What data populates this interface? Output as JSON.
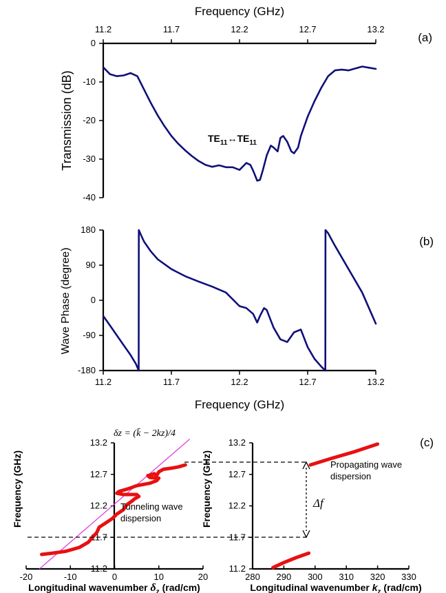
{
  "chart_data": [
    {
      "panel_label": "(a)",
      "type": "line",
      "xlabel": "Frequency (GHz)",
      "ylabel": "Transmission (dB)",
      "x_ticks": [
        "11.2",
        "11.7",
        "12.2",
        "12.7",
        "13.2"
      ],
      "y_ticks": [
        "0",
        "-10",
        "-20",
        "-30",
        "-40"
      ],
      "xlim": [
        11.2,
        13.2
      ],
      "ylim": [
        -40,
        0
      ],
      "annotation": {
        "main": "TE",
        "sub1": "11",
        "arrow": "↔",
        "main2": "TE",
        "sub2": "11"
      },
      "x": [
        11.2,
        11.25,
        11.3,
        11.35,
        11.4,
        11.45,
        11.5,
        11.55,
        11.6,
        11.65,
        11.7,
        11.75,
        11.8,
        11.85,
        11.9,
        11.95,
        12.0,
        12.05,
        12.1,
        12.15,
        12.2,
        12.25,
        12.28,
        12.3,
        12.33,
        12.35,
        12.37,
        12.4,
        12.43,
        12.45,
        12.48,
        12.5,
        12.52,
        12.55,
        12.58,
        12.6,
        12.63,
        12.65,
        12.7,
        12.75,
        12.8,
        12.85,
        12.9,
        12.95,
        13.0,
        13.05,
        13.1,
        13.15,
        13.2
      ],
      "y": [
        -6.2,
        -8.0,
        -8.5,
        -8.3,
        -7.7,
        -8.5,
        -12.0,
        -15.5,
        -18.7,
        -21.5,
        -24.0,
        -26.0,
        -27.7,
        -29.2,
        -30.5,
        -31.5,
        -32.0,
        -31.6,
        -32.1,
        -32.1,
        -32.8,
        -31.0,
        -31.5,
        -33.0,
        -35.6,
        -35.4,
        -33.0,
        -29.0,
        -26.5,
        -27.0,
        -28.0,
        -24.5,
        -24.0,
        -25.5,
        -28.0,
        -28.5,
        -27.0,
        -24.0,
        -19.0,
        -15.0,
        -11.5,
        -8.5,
        -7.0,
        -6.8,
        -7.0,
        -6.5,
        -6.0,
        -6.3,
        -6.6
      ]
    },
    {
      "panel_label": "(b)",
      "type": "line",
      "xlabel": "Frequency (GHz)",
      "ylabel": "Wave Phase (degree)",
      "x_ticks": [
        "11.2",
        "11.7",
        "12.2",
        "12.7",
        "13.2"
      ],
      "y_ticks": [
        "180",
        "90",
        "0",
        "-90",
        "-180"
      ],
      "xlim": [
        11.2,
        13.2
      ],
      "ylim": [
        -180,
        180
      ],
      "x": [
        11.2,
        11.25,
        11.3,
        11.35,
        11.4,
        11.44,
        11.46,
        11.461,
        11.48,
        11.5,
        11.55,
        11.6,
        11.7,
        11.8,
        11.9,
        12.0,
        12.1,
        12.2,
        12.25,
        12.3,
        12.33,
        12.35,
        12.38,
        12.4,
        12.45,
        12.5,
        12.55,
        12.6,
        12.65,
        12.7,
        12.75,
        12.8,
        12.83,
        12.831,
        12.85,
        12.9,
        12.95,
        13.0,
        13.05,
        13.1,
        13.15,
        13.2
      ],
      "y": [
        -40,
        -65,
        -90,
        -115,
        -140,
        -163,
        -180,
        180,
        165,
        150,
        125,
        105,
        80,
        62,
        48,
        35,
        20,
        -15,
        -20,
        -35,
        -57,
        -40,
        -20,
        -25,
        -70,
        -100,
        -107,
        -82,
        -75,
        -120,
        -150,
        -170,
        -180,
        180,
        172,
        140,
        110,
        80,
        50,
        20,
        -20,
        -60
      ]
    },
    {
      "panel_label": "(c)",
      "type": "scatter",
      "xlabel": "Longitudinal wavenumber",
      "xlabel_symbol": "δ",
      "xlabel_sub": "z",
      "xlabel_unit": "(rad/cm)",
      "ylabel": "Frequency (GHz)",
      "x_ticks": [
        "-20",
        "-10",
        "0",
        "10",
        "20"
      ],
      "y_ticks": [
        "11.2",
        "11.7",
        "12.2",
        "12.7",
        "13.2"
      ],
      "xlim": [
        -20,
        20
      ],
      "ylim": [
        11.2,
        13.2
      ],
      "equation": "δz = (k̄ − 2kz)/4",
      "note_line1": "Tunneling wave",
      "note_line2": "dispersion",
      "x": [
        -16.5,
        -14,
        -11,
        -8,
        -6,
        -5,
        -4,
        -3.5,
        -2,
        -0.5,
        0.5,
        2,
        2.5,
        3,
        4,
        4.5,
        5.5,
        5,
        2,
        0.5,
        1,
        3,
        5,
        8,
        9.5,
        10,
        8,
        7.5,
        9,
        9.5,
        10,
        11,
        13,
        14.5,
        16
      ],
      "y": [
        11.43,
        11.45,
        11.48,
        11.54,
        11.62,
        11.7,
        11.78,
        11.86,
        11.93,
        12.0,
        12.07,
        12.14,
        12.2,
        12.23,
        12.28,
        12.31,
        12.35,
        12.38,
        12.38,
        12.4,
        12.43,
        12.47,
        12.52,
        12.56,
        12.6,
        12.64,
        12.65,
        12.68,
        12.71,
        12.68,
        12.74,
        12.78,
        12.8,
        12.82,
        12.85
      ],
      "fit_line": {
        "x": [
          -17,
          17
        ],
        "y": [
          11.2,
          13.26
        ]
      }
    },
    {
      "panel_label": "",
      "type": "scatter",
      "xlabel": "Longitudinal wavenumber",
      "xlabel_symbol": "k",
      "xlabel_sub": "z",
      "xlabel_unit": "(rad/cm)",
      "ylabel": "Frequency (GHz)",
      "x_ticks": [
        "280",
        "290",
        "300",
        "310",
        "320",
        "330"
      ],
      "y_ticks": [
        "11.2",
        "11.7",
        "12.2",
        "12.7",
        "13.2"
      ],
      "xlim": [
        280,
        330
      ],
      "ylim": [
        11.2,
        13.2
      ],
      "note_line1": "Propagating wave",
      "note_line2": "dispersion",
      "gap_label": "Δf",
      "segments": [
        {
          "x": [
            286.5,
            290,
            294,
            298
          ],
          "y": [
            11.22,
            11.3,
            11.38,
            11.45
          ]
        },
        {
          "x": [
            298.5,
            305,
            312,
            320
          ],
          "y": [
            12.85,
            12.95,
            13.05,
            13.18
          ]
        }
      ],
      "band_edges": [
        11.45,
        12.85
      ]
    }
  ]
}
